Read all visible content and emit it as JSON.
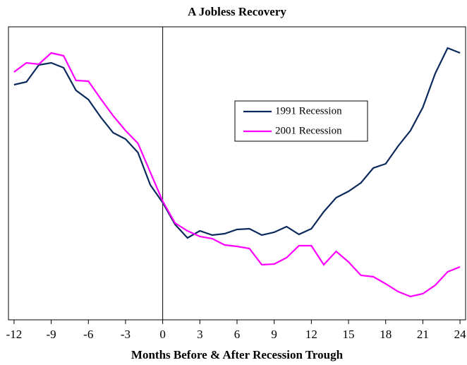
{
  "chart_data": {
    "type": "line",
    "title": "A Jobless Recovery",
    "x_label": "Months Before & After Recession Trough",
    "x": [
      -12,
      -11,
      -10,
      -9,
      -8,
      -7,
      -6,
      -5,
      -4,
      -3,
      -2,
      -1,
      0,
      1,
      2,
      3,
      4,
      5,
      6,
      7,
      8,
      9,
      10,
      11,
      12,
      13,
      14,
      15,
      16,
      17,
      18,
      19,
      20,
      21,
      22,
      23,
      24
    ],
    "series": [
      {
        "name": "1991 Recession",
        "color": "#0b2a5c",
        "values": [
          333,
          337,
          361,
          364,
          357,
          325,
          312,
          287,
          265,
          256,
          237,
          191,
          166,
          135,
          116,
          126,
          120,
          122,
          128,
          129,
          120,
          124,
          132,
          121,
          129,
          153,
          173,
          182,
          194,
          215,
          221,
          246,
          268,
          301,
          349,
          385,
          378
        ]
      },
      {
        "name": "2001 Recession",
        "color": "#ff00ff",
        "values": [
          351,
          364,
          362,
          378,
          374,
          339,
          338,
          313,
          289,
          268,
          250,
          209,
          168,
          137,
          126,
          118,
          115,
          106,
          104,
          101,
          78,
          79,
          88,
          105,
          105,
          78,
          97,
          82,
          63,
          61,
          51,
          40,
          33,
          37,
          49,
          68,
          75
        ]
      }
    ],
    "xlim": [
      -12.45,
      24.45
    ],
    "xticks": [
      -12,
      -9,
      -6,
      -3,
      0,
      3,
      6,
      9,
      12,
      15,
      18,
      21,
      24
    ],
    "ylim": [
      0,
      415
    ],
    "vline": 0
  }
}
